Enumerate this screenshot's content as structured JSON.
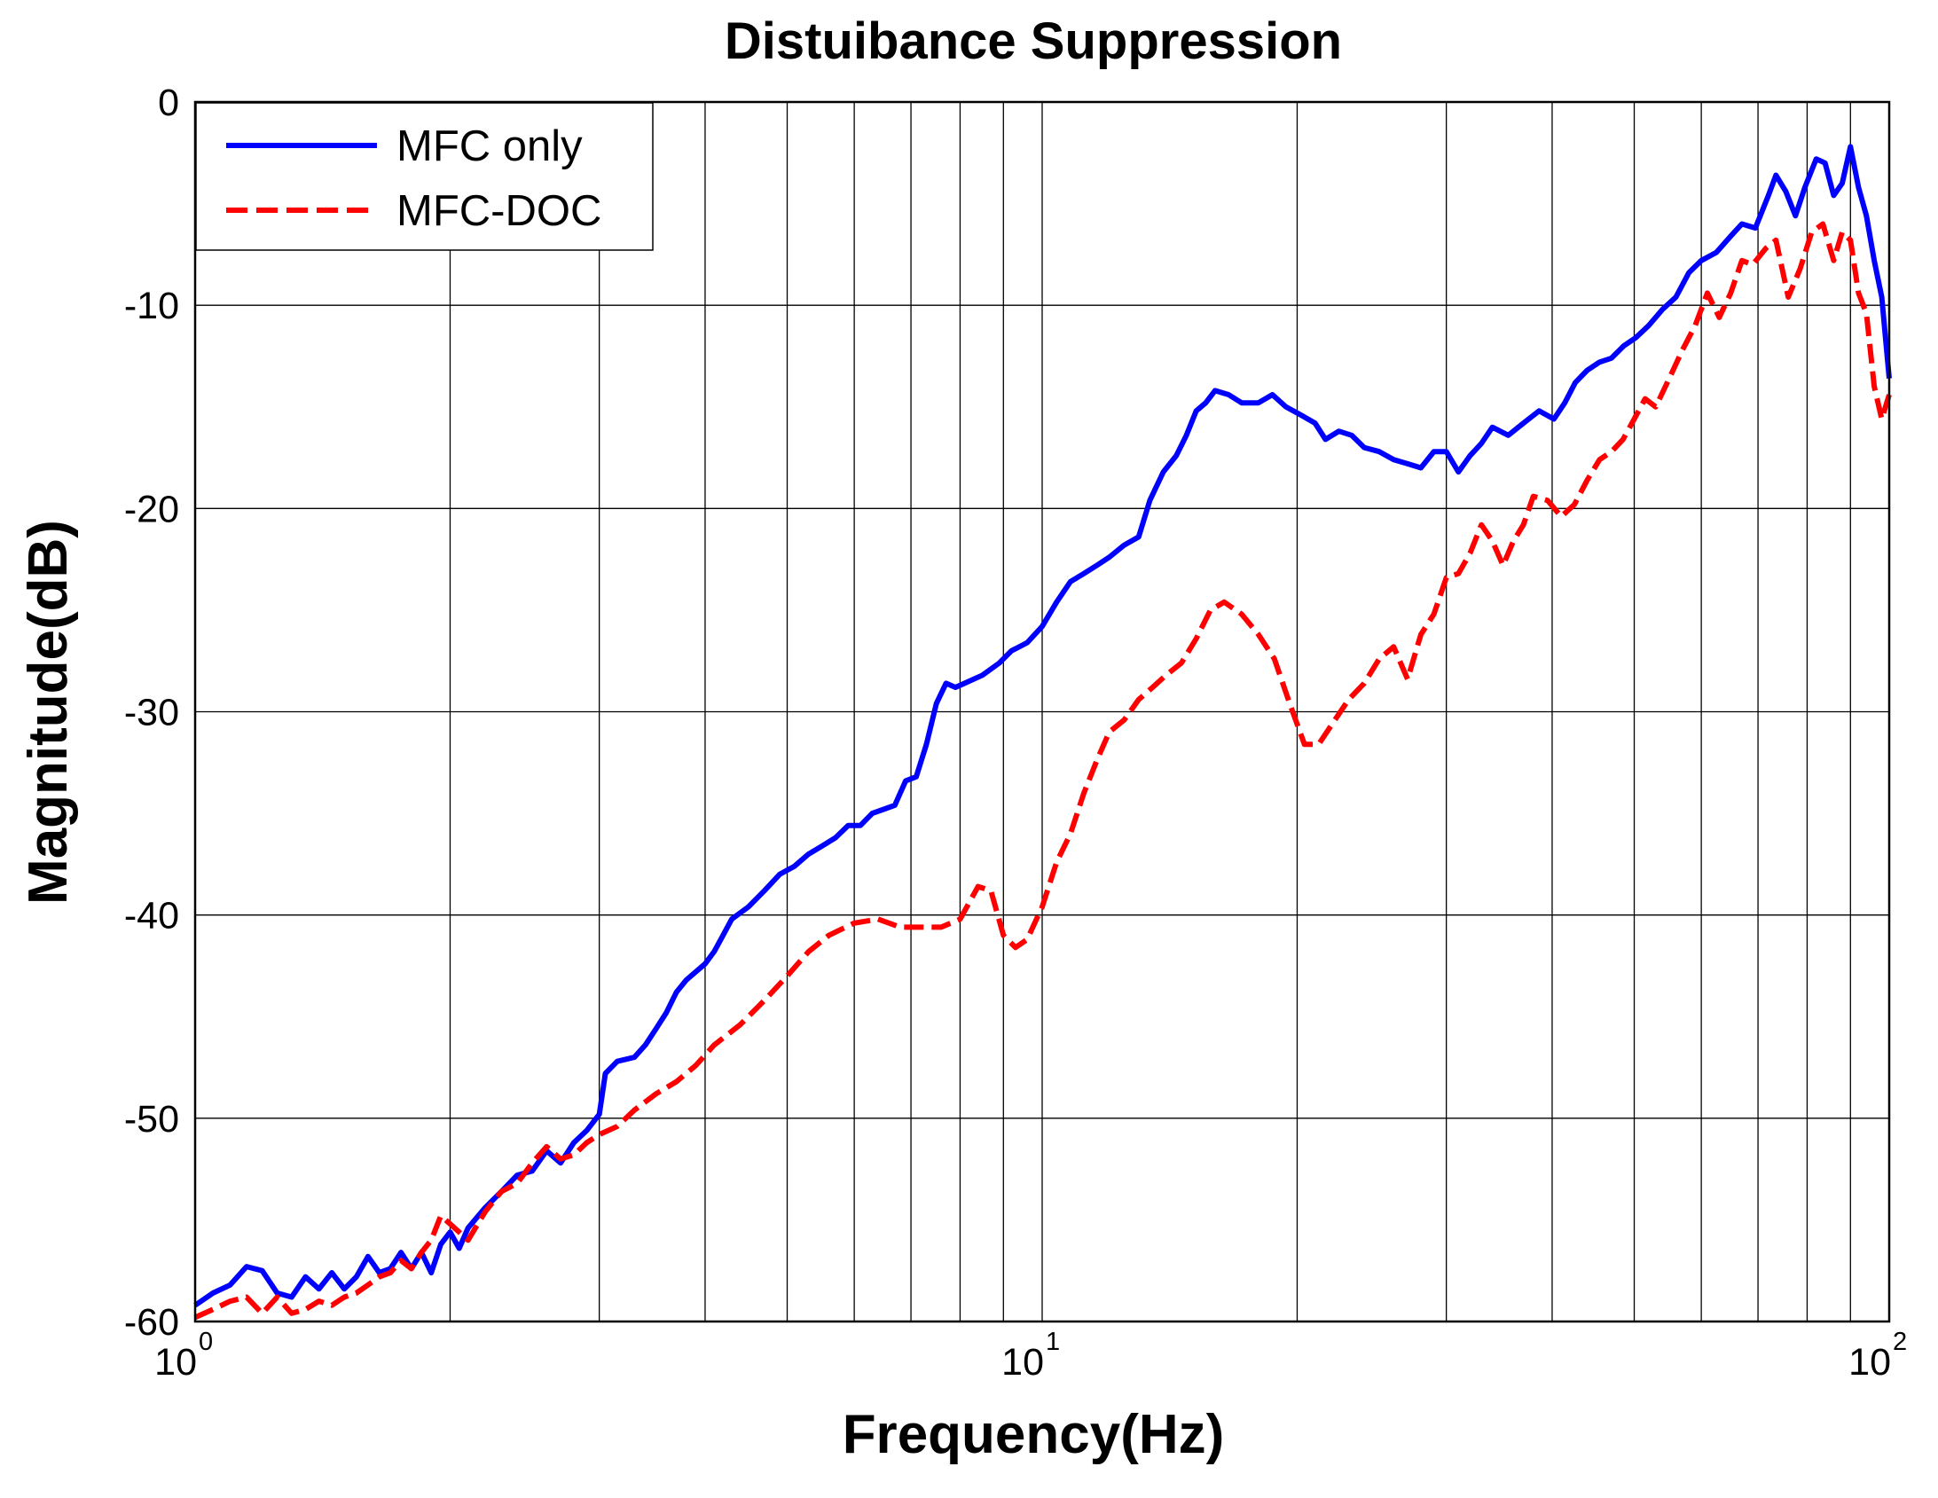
{
  "chart_data": {
    "type": "line",
    "title": "Distuibance Suppression",
    "xlabel": "Frequency(Hz)",
    "ylabel": "Magnitude(dB)",
    "xscale": "log",
    "xlim": [
      1,
      100
    ],
    "ylim": [
      -60,
      0
    ],
    "grid": true,
    "legend_position": "top-left",
    "x_ticks": [
      {
        "base": "10",
        "exp": "0"
      },
      {
        "base": "10",
        "exp": "1"
      },
      {
        "base": "10",
        "exp": "2"
      }
    ],
    "y_ticks": [
      "0",
      "-10",
      "-20",
      "-30",
      "-40",
      "-50",
      "-60"
    ],
    "series": [
      {
        "name": "MFC only",
        "color": "#0000ff",
        "style": "solid",
        "points": [
          [
            1.0,
            -59.2
          ],
          [
            1.05,
            -58.6
          ],
          [
            1.1,
            -58.2
          ],
          [
            1.15,
            -57.3
          ],
          [
            1.2,
            -57.5
          ],
          [
            1.25,
            -58.6
          ],
          [
            1.3,
            -58.8
          ],
          [
            1.35,
            -57.8
          ],
          [
            1.4,
            -58.4
          ],
          [
            1.45,
            -57.6
          ],
          [
            1.5,
            -58.4
          ],
          [
            1.55,
            -57.8
          ],
          [
            1.6,
            -56.8
          ],
          [
            1.65,
            -57.6
          ],
          [
            1.7,
            -57.4
          ],
          [
            1.75,
            -56.6
          ],
          [
            1.8,
            -57.4
          ],
          [
            1.85,
            -56.6
          ],
          [
            1.9,
            -57.6
          ],
          [
            1.95,
            -56.2
          ],
          [
            2.0,
            -55.6
          ],
          [
            2.05,
            -56.4
          ],
          [
            2.1,
            -55.4
          ],
          [
            2.2,
            -54.4
          ],
          [
            2.3,
            -53.6
          ],
          [
            2.4,
            -52.8
          ],
          [
            2.5,
            -52.6
          ],
          [
            2.6,
            -51.6
          ],
          [
            2.7,
            -52.2
          ],
          [
            2.8,
            -51.2
          ],
          [
            2.9,
            -50.6
          ],
          [
            3.0,
            -49.8
          ],
          [
            3.05,
            -47.8
          ],
          [
            3.15,
            -47.2
          ],
          [
            3.3,
            -47.0
          ],
          [
            3.4,
            -46.4
          ],
          [
            3.5,
            -45.6
          ],
          [
            3.6,
            -44.8
          ],
          [
            3.7,
            -43.8
          ],
          [
            3.8,
            -43.2
          ],
          [
            4.0,
            -42.4
          ],
          [
            4.1,
            -41.8
          ],
          [
            4.2,
            -41.0
          ],
          [
            4.3,
            -40.2
          ],
          [
            4.5,
            -39.6
          ],
          [
            4.7,
            -38.8
          ],
          [
            4.9,
            -38.0
          ],
          [
            5.1,
            -37.6
          ],
          [
            5.3,
            -37.0
          ],
          [
            5.5,
            -36.6
          ],
          [
            5.7,
            -36.2
          ],
          [
            5.9,
            -35.6
          ],
          [
            6.1,
            -35.6
          ],
          [
            6.3,
            -35.0
          ],
          [
            6.5,
            -34.8
          ],
          [
            6.7,
            -34.6
          ],
          [
            6.9,
            -33.4
          ],
          [
            7.1,
            -33.2
          ],
          [
            7.3,
            -31.6
          ],
          [
            7.5,
            -29.6
          ],
          [
            7.7,
            -28.6
          ],
          [
            7.9,
            -28.8
          ],
          [
            8.1,
            -28.6
          ],
          [
            8.5,
            -28.2
          ],
          [
            8.9,
            -27.6
          ],
          [
            9.2,
            -27.0
          ],
          [
            9.6,
            -26.6
          ],
          [
            10.0,
            -25.8
          ],
          [
            10.4,
            -24.6
          ],
          [
            10.8,
            -23.6
          ],
          [
            11.2,
            -23.2
          ],
          [
            11.6,
            -22.8
          ],
          [
            12.0,
            -22.4
          ],
          [
            12.5,
            -21.8
          ],
          [
            13.0,
            -21.4
          ],
          [
            13.4,
            -19.6
          ],
          [
            13.9,
            -18.2
          ],
          [
            14.4,
            -17.4
          ],
          [
            14.8,
            -16.4
          ],
          [
            15.2,
            -15.2
          ],
          [
            15.6,
            -14.8
          ],
          [
            16.0,
            -14.2
          ],
          [
            16.6,
            -14.4
          ],
          [
            17.2,
            -14.8
          ],
          [
            18.0,
            -14.8
          ],
          [
            18.7,
            -14.4
          ],
          [
            19.4,
            -15.0
          ],
          [
            20.2,
            -15.4
          ],
          [
            21.0,
            -15.8
          ],
          [
            21.6,
            -16.6
          ],
          [
            22.4,
            -16.2
          ],
          [
            23.2,
            -16.4
          ],
          [
            24.0,
            -17.0
          ],
          [
            25.0,
            -17.2
          ],
          [
            26.0,
            -17.6
          ],
          [
            27.0,
            -17.8
          ],
          [
            28.0,
            -18.0
          ],
          [
            29.0,
            -17.2
          ],
          [
            30.0,
            -17.2
          ],
          [
            31.0,
            -18.2
          ],
          [
            32.0,
            -17.4
          ],
          [
            33.0,
            -16.8
          ],
          [
            34.0,
            -16.0
          ],
          [
            35.5,
            -16.4
          ],
          [
            37.0,
            -15.8
          ],
          [
            38.6,
            -15.2
          ],
          [
            40.2,
            -15.6
          ],
          [
            41.4,
            -14.8
          ],
          [
            42.6,
            -13.8
          ],
          [
            44.0,
            -13.2
          ],
          [
            45.5,
            -12.8
          ],
          [
            47.0,
            -12.6
          ],
          [
            48.6,
            -12.0
          ],
          [
            50.2,
            -11.6
          ],
          [
            52.0,
            -11.0
          ],
          [
            54.0,
            -10.2
          ],
          [
            56.0,
            -9.6
          ],
          [
            58.0,
            -8.4
          ],
          [
            60.0,
            -7.8
          ],
          [
            62.5,
            -7.4
          ],
          [
            65.0,
            -6.6
          ],
          [
            67.0,
            -6.0
          ],
          [
            69.5,
            -6.2
          ],
          [
            72.0,
            -4.6
          ],
          [
            73.5,
            -3.6
          ],
          [
            75.5,
            -4.4
          ],
          [
            77.5,
            -5.6
          ],
          [
            79.5,
            -4.2
          ],
          [
            82.0,
            -2.8
          ],
          [
            84.0,
            -3.0
          ],
          [
            86.0,
            -4.6
          ],
          [
            88.0,
            -4.0
          ],
          [
            90.0,
            -2.2
          ],
          [
            92.0,
            -4.2
          ],
          [
            94.0,
            -5.6
          ],
          [
            96.0,
            -7.8
          ],
          [
            98.0,
            -9.6
          ],
          [
            100.0,
            -13.6
          ]
        ]
      },
      {
        "name": "MFC-DOC",
        "color": "#ff0000",
        "style": "dashed",
        "points": [
          [
            1.0,
            -59.8
          ],
          [
            1.05,
            -59.4
          ],
          [
            1.1,
            -59.0
          ],
          [
            1.15,
            -58.8
          ],
          [
            1.2,
            -59.6
          ],
          [
            1.25,
            -58.8
          ],
          [
            1.3,
            -59.6
          ],
          [
            1.35,
            -59.4
          ],
          [
            1.4,
            -59.0
          ],
          [
            1.45,
            -59.2
          ],
          [
            1.5,
            -58.8
          ],
          [
            1.55,
            -58.6
          ],
          [
            1.6,
            -58.2
          ],
          [
            1.65,
            -57.8
          ],
          [
            1.7,
            -57.6
          ],
          [
            1.75,
            -57.0
          ],
          [
            1.8,
            -57.4
          ],
          [
            1.85,
            -56.6
          ],
          [
            1.9,
            -56.0
          ],
          [
            1.95,
            -54.8
          ],
          [
            2.0,
            -55.2
          ],
          [
            2.05,
            -55.6
          ],
          [
            2.1,
            -56.0
          ],
          [
            2.2,
            -54.6
          ],
          [
            2.3,
            -53.6
          ],
          [
            2.4,
            -53.2
          ],
          [
            2.5,
            -52.2
          ],
          [
            2.6,
            -51.4
          ],
          [
            2.7,
            -52.0
          ],
          [
            2.8,
            -51.8
          ],
          [
            2.9,
            -51.2
          ],
          [
            3.0,
            -50.8
          ],
          [
            3.15,
            -50.4
          ],
          [
            3.3,
            -49.6
          ],
          [
            3.5,
            -48.8
          ],
          [
            3.7,
            -48.2
          ],
          [
            3.9,
            -47.4
          ],
          [
            4.1,
            -46.4
          ],
          [
            4.4,
            -45.4
          ],
          [
            4.7,
            -44.2
          ],
          [
            5.0,
            -43.0
          ],
          [
            5.3,
            -41.8
          ],
          [
            5.6,
            -41.0
          ],
          [
            6.0,
            -40.4
          ],
          [
            6.4,
            -40.2
          ],
          [
            6.8,
            -40.6
          ],
          [
            7.2,
            -40.6
          ],
          [
            7.6,
            -40.6
          ],
          [
            8.0,
            -40.2
          ],
          [
            8.4,
            -38.6
          ],
          [
            8.7,
            -38.8
          ],
          [
            9.0,
            -41.0
          ],
          [
            9.3,
            -41.6
          ],
          [
            9.6,
            -41.2
          ],
          [
            10.0,
            -39.6
          ],
          [
            10.4,
            -37.4
          ],
          [
            10.8,
            -36.0
          ],
          [
            11.2,
            -34.0
          ],
          [
            11.6,
            -32.4
          ],
          [
            12.0,
            -31.0
          ],
          [
            12.5,
            -30.4
          ],
          [
            13.0,
            -29.4
          ],
          [
            13.5,
            -28.8
          ],
          [
            14.0,
            -28.2
          ],
          [
            14.6,
            -27.6
          ],
          [
            15.2,
            -26.4
          ],
          [
            15.8,
            -25.0
          ],
          [
            16.4,
            -24.6
          ],
          [
            17.2,
            -25.2
          ],
          [
            18.0,
            -26.2
          ],
          [
            18.8,
            -27.4
          ],
          [
            19.6,
            -29.6
          ],
          [
            20.4,
            -31.6
          ],
          [
            21.2,
            -31.6
          ],
          [
            22.0,
            -30.6
          ],
          [
            23.0,
            -29.4
          ],
          [
            24.0,
            -28.6
          ],
          [
            25.0,
            -27.4
          ],
          [
            26.0,
            -26.8
          ],
          [
            27.0,
            -28.4
          ],
          [
            28.0,
            -26.2
          ],
          [
            29.0,
            -25.2
          ],
          [
            30.0,
            -23.4
          ],
          [
            31.0,
            -23.2
          ],
          [
            32.0,
            -22.2
          ],
          [
            33.0,
            -20.8
          ],
          [
            34.0,
            -21.6
          ],
          [
            35.0,
            -22.8
          ],
          [
            36.0,
            -21.6
          ],
          [
            37.0,
            -20.8
          ],
          [
            38.0,
            -19.4
          ],
          [
            39.5,
            -19.6
          ],
          [
            41.0,
            -20.4
          ],
          [
            42.5,
            -19.8
          ],
          [
            44.0,
            -18.6
          ],
          [
            45.5,
            -17.6
          ],
          [
            47.0,
            -17.2
          ],
          [
            48.5,
            -16.6
          ],
          [
            50.0,
            -15.6
          ],
          [
            51.5,
            -14.6
          ],
          [
            53.0,
            -15.0
          ],
          [
            55.0,
            -13.6
          ],
          [
            57.0,
            -12.2
          ],
          [
            59.0,
            -11.0
          ],
          [
            61.0,
            -9.4
          ],
          [
            63.0,
            -10.6
          ],
          [
            65.0,
            -9.4
          ],
          [
            67.0,
            -7.8
          ],
          [
            69.0,
            -8.0
          ],
          [
            71.5,
            -7.2
          ],
          [
            73.5,
            -6.8
          ],
          [
            76.0,
            -9.6
          ],
          [
            78.5,
            -8.2
          ],
          [
            81.0,
            -6.4
          ],
          [
            83.5,
            -6.0
          ],
          [
            86.0,
            -7.8
          ],
          [
            88.0,
            -6.4
          ],
          [
            90.0,
            -6.8
          ],
          [
            92.0,
            -9.4
          ],
          [
            94.0,
            -10.4
          ],
          [
            96.0,
            -14.0
          ],
          [
            98.0,
            -15.6
          ],
          [
            100.0,
            -14.4
          ]
        ]
      }
    ]
  }
}
